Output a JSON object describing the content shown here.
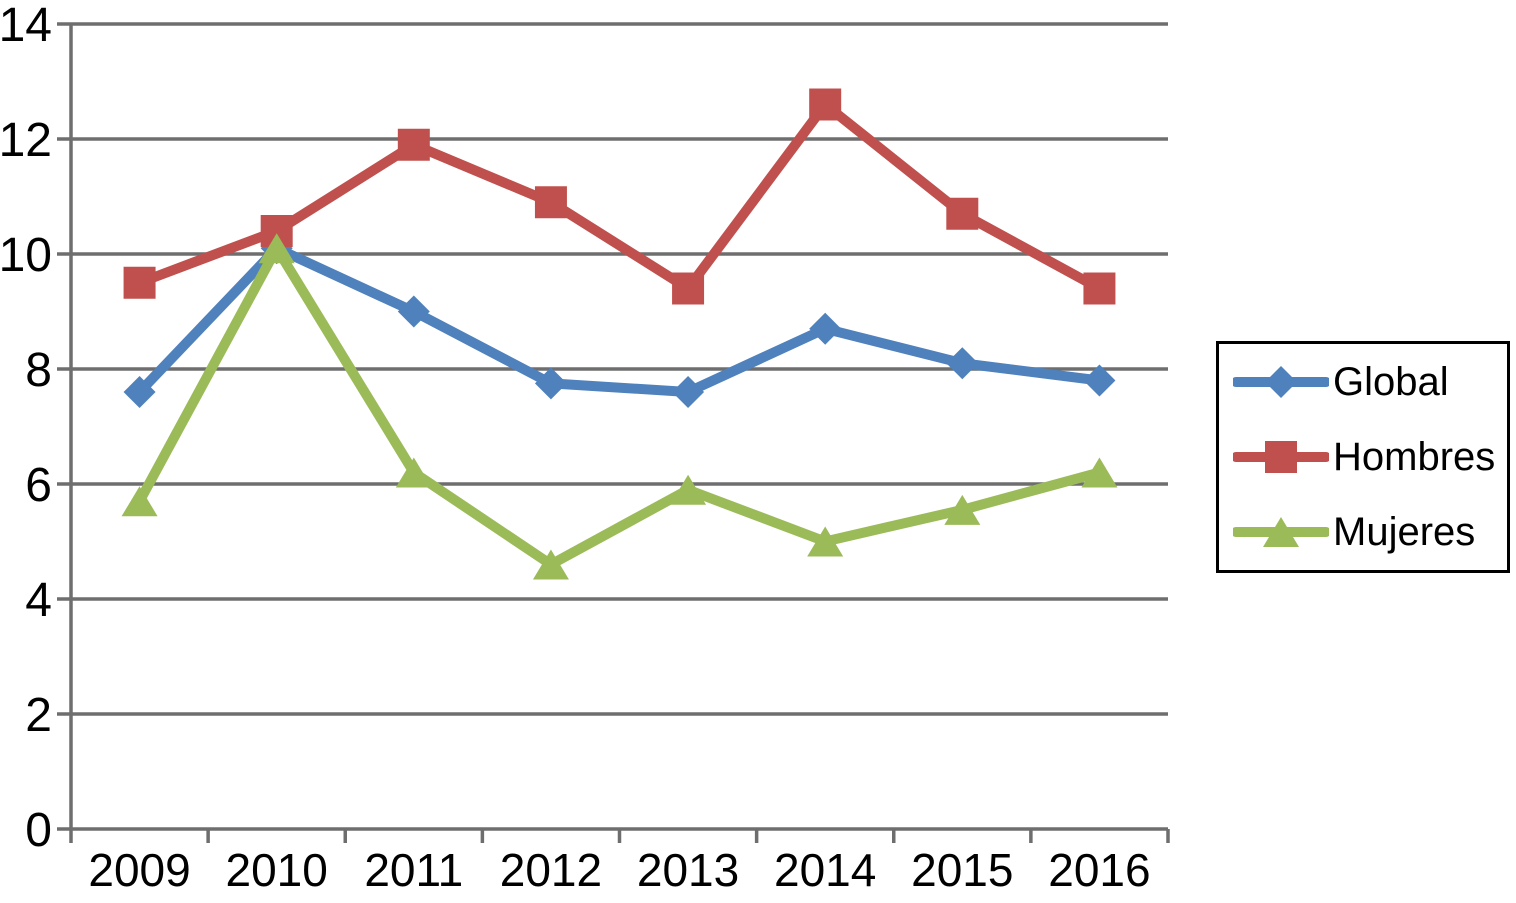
{
  "chart_data": {
    "type": "line",
    "title": "",
    "xlabel": "",
    "ylabel": "",
    "categories": [
      "2009",
      "2010",
      "2011",
      "2012",
      "2013",
      "2014",
      "2015",
      "2016"
    ],
    "series": [
      {
        "name": "Global",
        "marker": "diamond",
        "color": "#4F81BD",
        "values": [
          7.6,
          10.1,
          9.0,
          7.75,
          7.6,
          8.7,
          8.1,
          7.8
        ]
      },
      {
        "name": "Hombres",
        "marker": "square",
        "color": "#C0504D",
        "values": [
          9.5,
          10.4,
          11.9,
          10.9,
          9.4,
          12.6,
          10.7,
          9.4
        ]
      },
      {
        "name": "Mujeres",
        "marker": "triangle",
        "color": "#9BBB59",
        "values": [
          5.7,
          10.1,
          6.2,
          4.6,
          5.9,
          5.0,
          5.55,
          6.2
        ]
      }
    ],
    "ylim": [
      0,
      14
    ],
    "ytick_step": 2,
    "y_tick_labels": [
      "0",
      "2",
      "4",
      "6",
      "8",
      "10",
      "12",
      "14"
    ],
    "grid": true,
    "legend_position": "right"
  },
  "legend": {
    "items": [
      {
        "label": "Global"
      },
      {
        "label": "Hombres"
      },
      {
        "label": "Mujeres"
      }
    ]
  },
  "colors": {
    "gridline": "#6E6E6E",
    "axis": "#6E6E6E",
    "text": "#000000",
    "background": "#FFFFFF",
    "legend_border": "#000000"
  }
}
